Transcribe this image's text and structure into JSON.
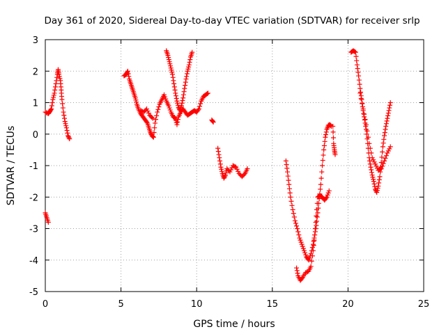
{
  "chart_data": {
    "type": "scatter",
    "title": "Day 361 of 2020, Sidereal Day-to-day VTEC variation (SDTVAR) for receiver srlp",
    "xlabel": "GPS time / hours",
    "ylabel": "SDTVAR / TECUs",
    "xlim": [
      0,
      25
    ],
    "ylim": [
      -5,
      3
    ],
    "x_ticks": [
      "0",
      "5",
      "10",
      "15",
      "20",
      "25"
    ],
    "y_ticks": [
      "-5",
      "-4",
      "-3",
      "-2",
      "-1",
      "0",
      "1",
      "2",
      "3"
    ],
    "grid": true,
    "marker": "plus",
    "color": "#ff0000",
    "segments": [
      [
        [
          0.0,
          -2.5
        ],
        [
          0.1,
          -2.65
        ],
        [
          0.2,
          -2.8
        ]
      ],
      [
        [
          0.0,
          0.7
        ],
        [
          0.2,
          0.65
        ],
        [
          0.3,
          0.72
        ],
        [
          0.4,
          0.8
        ],
        [
          0.5,
          1.1
        ],
        [
          0.6,
          1.3
        ],
        [
          0.7,
          1.6
        ],
        [
          0.8,
          1.9
        ],
        [
          0.85,
          2.05
        ],
        [
          0.9,
          1.9
        ],
        [
          1.0,
          1.7
        ],
        [
          1.05,
          1.4
        ],
        [
          1.1,
          1.1
        ],
        [
          1.2,
          0.7
        ],
        [
          1.3,
          0.4
        ],
        [
          1.4,
          0.2
        ],
        [
          1.5,
          -0.05
        ],
        [
          1.6,
          -0.15
        ]
      ],
      [
        [
          5.2,
          1.85
        ],
        [
          5.35,
          1.9
        ],
        [
          5.45,
          2.0
        ],
        [
          5.55,
          1.75
        ],
        [
          5.65,
          1.6
        ],
        [
          5.75,
          1.45
        ],
        [
          5.85,
          1.3
        ],
        [
          5.95,
          1.15
        ],
        [
          6.05,
          0.95
        ],
        [
          6.15,
          0.8
        ],
        [
          6.3,
          0.65
        ],
        [
          6.45,
          0.55
        ],
        [
          6.6,
          0.45
        ],
        [
          6.75,
          0.35
        ],
        [
          6.85,
          0.2
        ],
        [
          6.95,
          0.05
        ],
        [
          7.05,
          -0.05
        ],
        [
          7.15,
          -0.1
        ],
        [
          7.25,
          0.35
        ],
        [
          7.4,
          0.7
        ],
        [
          7.55,
          0.95
        ],
        [
          7.7,
          1.1
        ],
        [
          7.85,
          1.25
        ],
        [
          8.0,
          1.05
        ],
        [
          8.15,
          0.9
        ],
        [
          8.3,
          0.7
        ],
        [
          8.45,
          0.55
        ],
        [
          8.6,
          0.5
        ],
        [
          8.7,
          0.3
        ],
        [
          8.8,
          0.55
        ],
        [
          8.95,
          0.7
        ],
        [
          9.1,
          0.8
        ],
        [
          9.25,
          0.7
        ],
        [
          9.4,
          0.6
        ],
        [
          9.55,
          0.65
        ],
        [
          9.7,
          0.7
        ],
        [
          9.85,
          0.75
        ],
        [
          10.0,
          0.7
        ],
        [
          10.15,
          0.8
        ],
        [
          10.3,
          1.05
        ],
        [
          10.45,
          1.2
        ],
        [
          10.6,
          1.25
        ],
        [
          10.75,
          1.3
        ]
      ],
      [
        [
          6.3,
          0.75
        ],
        [
          6.5,
          0.7
        ],
        [
          6.7,
          0.8
        ],
        [
          6.9,
          0.6
        ],
        [
          7.1,
          0.5
        ]
      ],
      [
        [
          8.0,
          2.65
        ],
        [
          8.1,
          2.5
        ],
        [
          8.2,
          2.3
        ],
        [
          8.3,
          2.1
        ],
        [
          8.4,
          1.9
        ],
        [
          8.5,
          1.6
        ],
        [
          8.6,
          1.3
        ],
        [
          8.7,
          1.05
        ],
        [
          8.8,
          0.85
        ],
        [
          8.9,
          0.75
        ],
        [
          9.0,
          0.9
        ],
        [
          9.1,
          1.15
        ],
        [
          9.2,
          1.45
        ],
        [
          9.3,
          1.75
        ],
        [
          9.4,
          2.0
        ],
        [
          9.5,
          2.2
        ],
        [
          9.6,
          2.45
        ],
        [
          9.7,
          2.6
        ]
      ],
      [
        [
          11.0,
          0.45
        ],
        [
          11.1,
          0.38
        ]
      ],
      [
        [
          11.4,
          -0.45
        ],
        [
          11.5,
          -0.75
        ],
        [
          11.6,
          -1.05
        ],
        [
          11.7,
          -1.25
        ],
        [
          11.8,
          -1.4
        ],
        [
          11.9,
          -1.3
        ],
        [
          12.0,
          -1.1
        ],
        [
          12.2,
          -1.2
        ],
        [
          12.4,
          -1.0
        ],
        [
          12.6,
          -1.05
        ],
        [
          12.8,
          -1.25
        ],
        [
          13.0,
          -1.35
        ],
        [
          13.2,
          -1.25
        ],
        [
          13.35,
          -1.1
        ]
      ],
      [
        [
          15.9,
          -0.85
        ],
        [
          16.0,
          -1.2
        ],
        [
          16.1,
          -1.6
        ],
        [
          16.2,
          -2.0
        ],
        [
          16.35,
          -2.4
        ],
        [
          16.5,
          -2.75
        ],
        [
          16.65,
          -3.0
        ],
        [
          16.8,
          -3.3
        ],
        [
          16.95,
          -3.5
        ],
        [
          17.1,
          -3.7
        ],
        [
          17.25,
          -3.9
        ],
        [
          17.4,
          -4.0
        ],
        [
          17.55,
          -3.8
        ],
        [
          17.7,
          -3.5
        ],
        [
          17.8,
          -3.2
        ],
        [
          17.9,
          -2.9
        ],
        [
          18.0,
          -2.5
        ],
        [
          18.1,
          -2.05
        ],
        [
          18.2,
          -1.6
        ],
        [
          18.3,
          -1.0
        ],
        [
          18.4,
          -0.5
        ],
        [
          18.5,
          -0.1
        ],
        [
          18.6,
          0.15
        ],
        [
          18.7,
          0.28
        ],
        [
          18.8,
          0.3
        ],
        [
          18.9,
          0.25
        ]
      ],
      [
        [
          16.6,
          -4.25
        ],
        [
          16.7,
          -4.5
        ],
        [
          16.85,
          -4.65
        ],
        [
          17.0,
          -4.55
        ],
        [
          17.2,
          -4.4
        ],
        [
          17.4,
          -4.35
        ],
        [
          17.55,
          -4.2
        ],
        [
          17.7,
          -3.7
        ],
        [
          17.8,
          -3.2
        ],
        [
          17.9,
          -2.6
        ],
        [
          18.0,
          -2.0
        ],
        [
          18.15,
          -1.95
        ],
        [
          18.3,
          -2.0
        ],
        [
          18.45,
          -2.1
        ],
        [
          18.6,
          -2.0
        ],
        [
          18.75,
          -1.8
        ]
      ],
      [
        [
          19.0,
          0.25
        ],
        [
          19.05,
          -0.3
        ],
        [
          19.1,
          -0.5
        ],
        [
          19.15,
          -0.65
        ]
      ],
      [
        [
          20.2,
          2.6
        ],
        [
          20.35,
          2.65
        ],
        [
          20.5,
          2.6
        ],
        [
          20.6,
          2.2
        ],
        [
          20.7,
          1.85
        ],
        [
          20.8,
          1.45
        ],
        [
          20.9,
          1.1
        ],
        [
          21.0,
          0.75
        ],
        [
          21.1,
          0.45
        ],
        [
          21.2,
          0.15
        ],
        [
          21.3,
          -0.3
        ],
        [
          21.4,
          -0.75
        ],
        [
          21.5,
          -1.05
        ],
        [
          21.6,
          -1.3
        ],
        [
          21.7,
          -1.5
        ],
        [
          21.8,
          -1.75
        ],
        [
          21.9,
          -1.85
        ],
        [
          22.0,
          -1.65
        ],
        [
          22.1,
          -1.35
        ],
        [
          22.2,
          -0.9
        ],
        [
          22.3,
          -0.4
        ],
        [
          22.4,
          -0.05
        ],
        [
          22.5,
          0.25
        ],
        [
          22.6,
          0.5
        ],
        [
          22.7,
          0.75
        ],
        [
          22.8,
          1.0
        ]
      ],
      [
        [
          20.8,
          1.3
        ],
        [
          21.0,
          0.8
        ],
        [
          21.2,
          0.3
        ],
        [
          21.4,
          -0.3
        ],
        [
          21.6,
          -0.75
        ],
        [
          21.8,
          -0.95
        ],
        [
          22.0,
          -1.15
        ],
        [
          22.2,
          -1.1
        ],
        [
          22.4,
          -0.85
        ],
        [
          22.6,
          -0.6
        ],
        [
          22.8,
          -0.4
        ]
      ]
    ]
  }
}
